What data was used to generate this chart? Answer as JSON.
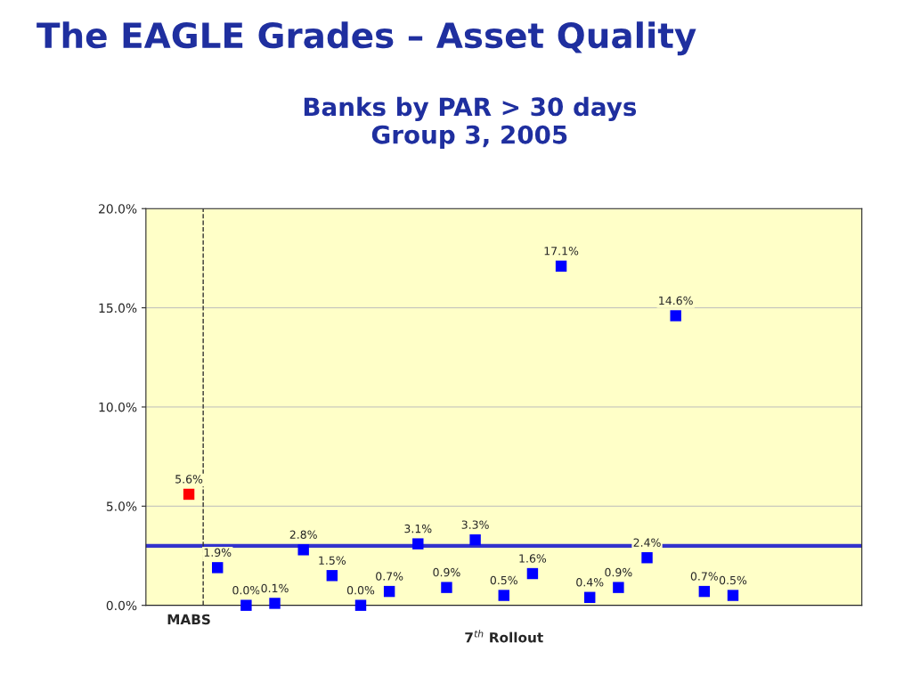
{
  "chart_data": {
    "type": "scatter",
    "title": "The EAGLE Grades – Asset Quality",
    "subtitle": "Banks by PAR > 30 days\nGroup 3, 2005",
    "xlabel": "7$^{th}$ Rollout",
    "categories": [
      null,
      "MABS",
      null,
      null,
      null,
      null,
      null,
      null,
      null,
      null,
      null,
      null,
      null,
      null,
      null,
      null,
      null,
      null,
      null,
      null,
      null,
      null,
      null,
      null,
      null
    ],
    "values": [
      null,
      5.6,
      1.9,
      0.0,
      0.1,
      2.8,
      1.5,
      0.0,
      0.7,
      3.1,
      0.9,
      3.3,
      0.5,
      1.6,
      17.1,
      0.4,
      0.9,
      2.4,
      14.6,
      0.7,
      0.5,
      null,
      null,
      null,
      null
    ],
    "value_labels": [
      null,
      "5.6%",
      "1.9%",
      "0.0%",
      "0.1%",
      "2.8%",
      "1.5%",
      "0.0%",
      "0.7%",
      "3.1%",
      "0.9%",
      "3.3%",
      "0.5%",
      "1.6%",
      "17.1%",
      "0.4%",
      "0.9%",
      "2.4%",
      "14.6%",
      "0.7%",
      "0.5%",
      null,
      null,
      null,
      null
    ],
    "colors": [
      "#0000ff",
      "#ff0000",
      "#0000ff",
      "#0000ff",
      "#0000ff",
      "#0000ff",
      "#0000ff",
      "#0000ff",
      "#0000ff",
      "#0000ff",
      "#0000ff",
      "#0000ff",
      "#0000ff",
      "#0000ff",
      "#0000ff",
      "#0000ff",
      "#0000ff",
      "#0000ff",
      "#0000ff",
      "#0000ff",
      "#0000ff",
      "#0000ff",
      "#0000ff",
      "#0000ff",
      "#0000ff"
    ],
    "marker": "square",
    "ylim": [
      0,
      20
    ],
    "yticks": [
      {
        "value": 0,
        "label": "0.0%"
      },
      {
        "value": 5,
        "label": "5.0%"
      },
      {
        "value": 10,
        "label": "10.0%"
      },
      {
        "value": 15,
        "label": "15.0%"
      },
      {
        "value": 20,
        "label": "20.0%"
      }
    ],
    "grid": "y",
    "ref_lines": [
      {
        "axis": "y",
        "value": 3.0,
        "color": "#3333cc",
        "line_style": "solid"
      }
    ]
  }
}
